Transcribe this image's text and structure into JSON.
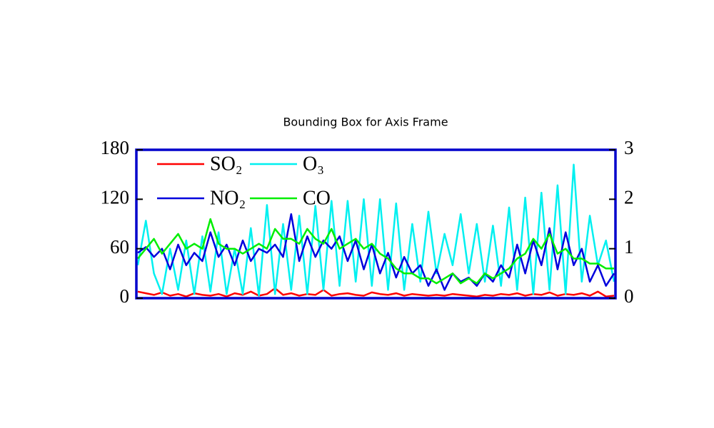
{
  "chart_data": {
    "type": "line",
    "title": "Bounding Box for Axis Frame",
    "ylim": [
      0,
      180
    ],
    "yticks": [
      0,
      60,
      120,
      180
    ],
    "y2lim": [
      0,
      3
    ],
    "y2ticks": [
      0,
      1,
      2,
      3
    ],
    "legend": "upper left",
    "frame_color": "#0000cc",
    "series": [
      {
        "name": "SO₂",
        "color": "#ff0000",
        "values": [
          8,
          6,
          4,
          7,
          3,
          5,
          2,
          6,
          4,
          3,
          5,
          2,
          6,
          4,
          8,
          3,
          5,
          12,
          4,
          6,
          3,
          5,
          4,
          10,
          3,
          5,
          6,
          4,
          3,
          7,
          5,
          4,
          6,
          3,
          5,
          4,
          3,
          4,
          3,
          5,
          4,
          3,
          2,
          4,
          3,
          5,
          4,
          6,
          3,
          5,
          4,
          7,
          3,
          5,
          4,
          6,
          3,
          8,
          2,
          3
        ]
      },
      {
        "name": "O₃",
        "color": "#00f0f0",
        "values": [
          40,
          94,
          30,
          5,
          60,
          10,
          70,
          5,
          75,
          8,
          80,
          5,
          60,
          5,
          85,
          3,
          113,
          5,
          90,
          10,
          100,
          5,
          112,
          10,
          118,
          15,
          118,
          20,
          120,
          15,
          120,
          10,
          115,
          10,
          90,
          20,
          105,
          30,
          78,
          40,
          102,
          30,
          90,
          20,
          88,
          15,
          110,
          10,
          122,
          5,
          128,
          10,
          137,
          5,
          162,
          20,
          100,
          40,
          70,
          20
        ]
      },
      {
        "name": "NO₂",
        "color": "#0000dd",
        "values": [
          55,
          62,
          50,
          60,
          35,
          65,
          40,
          55,
          45,
          80,
          50,
          65,
          40,
          70,
          45,
          60,
          55,
          65,
          50,
          102,
          45,
          75,
          50,
          70,
          60,
          75,
          45,
          70,
          35,
          65,
          30,
          55,
          25,
          50,
          30,
          40,
          15,
          35,
          10,
          30,
          20,
          25,
          15,
          30,
          20,
          40,
          25,
          65,
          30,
          70,
          40,
          85,
          35,
          80,
          40,
          60,
          20,
          40,
          15,
          30
        ]
      },
      {
        "name": "CO",
        "color": "#00ee00",
        "axis": "y2",
        "values": [
          0.8,
          1.0,
          1.2,
          0.9,
          1.1,
          1.3,
          1.0,
          1.1,
          1.0,
          1.6,
          1.1,
          1.0,
          1.0,
          0.9,
          1.0,
          1.1,
          1.0,
          1.4,
          1.2,
          1.2,
          1.1,
          1.4,
          1.2,
          1.1,
          1.4,
          1.0,
          1.1,
          1.2,
          1.0,
          1.1,
          0.9,
          0.8,
          0.6,
          0.5,
          0.5,
          0.4,
          0.4,
          0.3,
          0.4,
          0.5,
          0.3,
          0.4,
          0.3,
          0.5,
          0.4,
          0.5,
          0.6,
          0.8,
          0.9,
          1.2,
          1.0,
          1.3,
          0.9,
          1.0,
          0.8,
          0.8,
          0.7,
          0.7,
          0.6,
          0.6
        ]
      }
    ]
  }
}
